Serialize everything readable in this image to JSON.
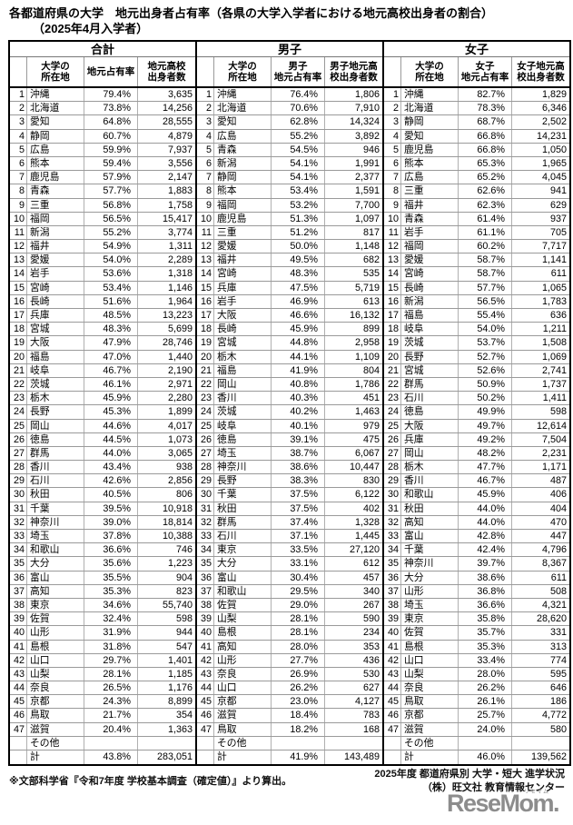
{
  "title": "各都道府県の大学　地元出身者占有率（各県の大学入学者における地元高校出身者の割合）",
  "subtitle": "（2025年4月入学者）",
  "sections": [
    {
      "name": "合計",
      "col_headers": {
        "name": "大学の\n所在地",
        "pct": "地元占有率",
        "num": "地元高校\n出身者数"
      },
      "rows": [
        [
          "1",
          "沖縄",
          "79.4%",
          "3,635"
        ],
        [
          "2",
          "北海道",
          "73.8%",
          "14,256"
        ],
        [
          "3",
          "愛知",
          "64.8%",
          "28,555"
        ],
        [
          "4",
          "静岡",
          "60.7%",
          "4,879"
        ],
        [
          "5",
          "広島",
          "59.9%",
          "7,937"
        ],
        [
          "6",
          "熊本",
          "59.4%",
          "3,556"
        ],
        [
          "7",
          "鹿児島",
          "57.9%",
          "2,147"
        ],
        [
          "8",
          "青森",
          "57.7%",
          "1,883"
        ],
        [
          "9",
          "三重",
          "56.8%",
          "1,758"
        ],
        [
          "10",
          "福岡",
          "56.5%",
          "15,417"
        ],
        [
          "11",
          "新潟",
          "55.2%",
          "3,774"
        ],
        [
          "12",
          "福井",
          "54.9%",
          "1,311"
        ],
        [
          "13",
          "愛媛",
          "54.0%",
          "2,289"
        ],
        [
          "14",
          "岩手",
          "53.6%",
          "1,318"
        ],
        [
          "15",
          "宮崎",
          "53.4%",
          "1,146"
        ],
        [
          "16",
          "長崎",
          "51.6%",
          "1,964"
        ],
        [
          "17",
          "兵庫",
          "48.5%",
          "13,223"
        ],
        [
          "18",
          "宮城",
          "48.3%",
          "5,699"
        ],
        [
          "19",
          "大阪",
          "47.9%",
          "28,746"
        ],
        [
          "20",
          "福島",
          "47.0%",
          "1,440"
        ],
        [
          "21",
          "岐阜",
          "46.7%",
          "2,190"
        ],
        [
          "22",
          "茨城",
          "46.1%",
          "2,971"
        ],
        [
          "23",
          "栃木",
          "45.9%",
          "2,280"
        ],
        [
          "24",
          "長野",
          "45.3%",
          "1,899"
        ],
        [
          "25",
          "岡山",
          "44.6%",
          "4,017"
        ],
        [
          "26",
          "徳島",
          "44.5%",
          "1,073"
        ],
        [
          "27",
          "群馬",
          "44.0%",
          "3,065"
        ],
        [
          "28",
          "香川",
          "43.4%",
          "938"
        ],
        [
          "29",
          "石川",
          "42.6%",
          "2,856"
        ],
        [
          "30",
          "秋田",
          "40.5%",
          "806"
        ],
        [
          "31",
          "千葉",
          "39.5%",
          "10,918"
        ],
        [
          "32",
          "神奈川",
          "39.0%",
          "18,814"
        ],
        [
          "33",
          "埼玉",
          "37.8%",
          "10,388"
        ],
        [
          "34",
          "和歌山",
          "36.6%",
          "746"
        ],
        [
          "35",
          "大分",
          "35.6%",
          "1,223"
        ],
        [
          "36",
          "富山",
          "35.5%",
          "904"
        ],
        [
          "37",
          "高知",
          "35.3%",
          "823"
        ],
        [
          "38",
          "東京",
          "34.6%",
          "55,740"
        ],
        [
          "39",
          "佐賀",
          "32.4%",
          "598"
        ],
        [
          "40",
          "山形",
          "31.9%",
          "944"
        ],
        [
          "41",
          "島根",
          "31.8%",
          "547"
        ],
        [
          "42",
          "山口",
          "29.7%",
          "1,401"
        ],
        [
          "43",
          "山梨",
          "28.1%",
          "1,185"
        ],
        [
          "44",
          "奈良",
          "26.5%",
          "1,176"
        ],
        [
          "45",
          "京都",
          "24.3%",
          "8,899"
        ],
        [
          "46",
          "鳥取",
          "21.7%",
          "354"
        ],
        [
          "47",
          "滋賀",
          "20.4%",
          "1,363"
        ],
        [
          "",
          "その他",
          "",
          ""
        ],
        [
          "",
          "計",
          "43.8%",
          "283,051"
        ]
      ]
    },
    {
      "name": "男子",
      "col_headers": {
        "name": "大学の\n所在地",
        "pct": "男子\n地元占有率",
        "num": "男子地元高\n校出身者数"
      },
      "rows": [
        [
          "1",
          "沖縄",
          "76.4%",
          "1,806"
        ],
        [
          "2",
          "北海道",
          "70.6%",
          "7,910"
        ],
        [
          "3",
          "愛知",
          "62.8%",
          "14,324"
        ],
        [
          "4",
          "広島",
          "55.2%",
          "3,892"
        ],
        [
          "5",
          "青森",
          "54.5%",
          "946"
        ],
        [
          "6",
          "新潟",
          "54.1%",
          "1,991"
        ],
        [
          "7",
          "静岡",
          "54.1%",
          "2,377"
        ],
        [
          "8",
          "熊本",
          "53.4%",
          "1,591"
        ],
        [
          "9",
          "福岡",
          "53.2%",
          "7,700"
        ],
        [
          "10",
          "鹿児島",
          "51.3%",
          "1,097"
        ],
        [
          "11",
          "三重",
          "51.2%",
          "817"
        ],
        [
          "12",
          "愛媛",
          "50.0%",
          "1,148"
        ],
        [
          "13",
          "福井",
          "49.5%",
          "682"
        ],
        [
          "14",
          "宮崎",
          "48.3%",
          "535"
        ],
        [
          "15",
          "兵庫",
          "47.5%",
          "5,719"
        ],
        [
          "16",
          "岩手",
          "46.9%",
          "613"
        ],
        [
          "17",
          "大阪",
          "46.6%",
          "16,132"
        ],
        [
          "18",
          "長崎",
          "45.9%",
          "899"
        ],
        [
          "19",
          "宮城",
          "44.8%",
          "2,958"
        ],
        [
          "20",
          "栃木",
          "44.1%",
          "1,109"
        ],
        [
          "21",
          "福島",
          "41.9%",
          "804"
        ],
        [
          "22",
          "岡山",
          "40.8%",
          "1,786"
        ],
        [
          "23",
          "香川",
          "40.3%",
          "451"
        ],
        [
          "24",
          "茨城",
          "40.2%",
          "1,463"
        ],
        [
          "25",
          "岐阜",
          "40.1%",
          "979"
        ],
        [
          "26",
          "徳島",
          "39.1%",
          "475"
        ],
        [
          "27",
          "埼玉",
          "38.7%",
          "6,067"
        ],
        [
          "28",
          "神奈川",
          "38.6%",
          "10,447"
        ],
        [
          "29",
          "長野",
          "38.3%",
          "830"
        ],
        [
          "30",
          "千葉",
          "37.5%",
          "6,122"
        ],
        [
          "31",
          "秋田",
          "37.5%",
          "402"
        ],
        [
          "32",
          "群馬",
          "37.4%",
          "1,328"
        ],
        [
          "33",
          "石川",
          "37.1%",
          "1,445"
        ],
        [
          "34",
          "東京",
          "33.5%",
          "27,120"
        ],
        [
          "35",
          "大分",
          "33.1%",
          "612"
        ],
        [
          "36",
          "富山",
          "30.4%",
          "457"
        ],
        [
          "37",
          "和歌山",
          "29.5%",
          "340"
        ],
        [
          "38",
          "佐賀",
          "29.0%",
          "267"
        ],
        [
          "39",
          "山梨",
          "28.1%",
          "590"
        ],
        [
          "40",
          "島根",
          "28.1%",
          "234"
        ],
        [
          "41",
          "高知",
          "28.0%",
          "353"
        ],
        [
          "42",
          "山形",
          "27.7%",
          "436"
        ],
        [
          "43",
          "奈良",
          "26.9%",
          "530"
        ],
        [
          "44",
          "山口",
          "26.2%",
          "627"
        ],
        [
          "45",
          "京都",
          "23.0%",
          "4,127"
        ],
        [
          "46",
          "滋賀",
          "18.4%",
          "783"
        ],
        [
          "47",
          "鳥取",
          "18.2%",
          "168"
        ],
        [
          "",
          "その他",
          "",
          ""
        ],
        [
          "",
          "計",
          "41.9%",
          "143,489"
        ]
      ]
    },
    {
      "name": "女子",
      "col_headers": {
        "name": "大学の\n所在地",
        "pct": "女子\n地元占有率",
        "num": "女子地元高\n校出身者数"
      },
      "rows": [
        [
          "1",
          "沖縄",
          "82.7%",
          "1,829"
        ],
        [
          "2",
          "北海道",
          "78.3%",
          "6,346"
        ],
        [
          "3",
          "静岡",
          "68.7%",
          "2,502"
        ],
        [
          "4",
          "愛知",
          "66.8%",
          "14,231"
        ],
        [
          "5",
          "鹿児島",
          "66.8%",
          "1,050"
        ],
        [
          "6",
          "熊本",
          "65.3%",
          "1,965"
        ],
        [
          "7",
          "広島",
          "65.2%",
          "4,045"
        ],
        [
          "8",
          "三重",
          "62.6%",
          "941"
        ],
        [
          "9",
          "福井",
          "62.3%",
          "629"
        ],
        [
          "10",
          "青森",
          "61.4%",
          "937"
        ],
        [
          "11",
          "岩手",
          "61.1%",
          "705"
        ],
        [
          "12",
          "福岡",
          "60.2%",
          "7,717"
        ],
        [
          "13",
          "愛媛",
          "58.7%",
          "1,141"
        ],
        [
          "14",
          "宮崎",
          "58.7%",
          "611"
        ],
        [
          "15",
          "長崎",
          "57.7%",
          "1,065"
        ],
        [
          "16",
          "新潟",
          "56.5%",
          "1,783"
        ],
        [
          "17",
          "福島",
          "55.4%",
          "636"
        ],
        [
          "18",
          "岐阜",
          "54.0%",
          "1,211"
        ],
        [
          "19",
          "茨城",
          "53.7%",
          "1,508"
        ],
        [
          "20",
          "長野",
          "52.7%",
          "1,069"
        ],
        [
          "21",
          "宮城",
          "52.6%",
          "2,741"
        ],
        [
          "22",
          "群馬",
          "50.9%",
          "1,737"
        ],
        [
          "23",
          "石川",
          "50.2%",
          "1,411"
        ],
        [
          "24",
          "徳島",
          "49.9%",
          "598"
        ],
        [
          "25",
          "大阪",
          "49.7%",
          "12,614"
        ],
        [
          "26",
          "兵庫",
          "49.2%",
          "7,504"
        ],
        [
          "27",
          "岡山",
          "48.2%",
          "2,231"
        ],
        [
          "28",
          "栃木",
          "47.7%",
          "1,171"
        ],
        [
          "29",
          "香川",
          "46.7%",
          "487"
        ],
        [
          "30",
          "和歌山",
          "45.9%",
          "406"
        ],
        [
          "31",
          "秋田",
          "44.0%",
          "404"
        ],
        [
          "32",
          "高知",
          "44.0%",
          "470"
        ],
        [
          "33",
          "富山",
          "42.8%",
          "447"
        ],
        [
          "34",
          "千葉",
          "42.4%",
          "4,796"
        ],
        [
          "35",
          "神奈川",
          "39.7%",
          "8,367"
        ],
        [
          "36",
          "大分",
          "38.6%",
          "611"
        ],
        [
          "37",
          "山形",
          "36.8%",
          "508"
        ],
        [
          "38",
          "埼玉",
          "36.6%",
          "4,321"
        ],
        [
          "39",
          "東京",
          "35.8%",
          "28,620"
        ],
        [
          "40",
          "佐賀",
          "35.7%",
          "331"
        ],
        [
          "41",
          "島根",
          "35.3%",
          "313"
        ],
        [
          "42",
          "山口",
          "33.4%",
          "774"
        ],
        [
          "43",
          "山梨",
          "28.0%",
          "595"
        ],
        [
          "44",
          "奈良",
          "26.2%",
          "646"
        ],
        [
          "45",
          "鳥取",
          "26.1%",
          "186"
        ],
        [
          "46",
          "京都",
          "25.7%",
          "4,772"
        ],
        [
          "47",
          "滋賀",
          "24.0%",
          "580"
        ],
        [
          "",
          "その他",
          "",
          ""
        ],
        [
          "",
          "計",
          "46.0%",
          "139,562"
        ]
      ]
    }
  ],
  "footnote": "※文部科学省『令和7年度 学校基本調査（確定値）』より算出。",
  "credit_line1": "2025年度 都道府県別 大学・短大 進学状況",
  "credit_line2": "（株）旺文社 教育情報センター",
  "logo": {
    "text": "ReseMom.",
    "ruby": "リセマム",
    "color": "#8d8d8d"
  }
}
